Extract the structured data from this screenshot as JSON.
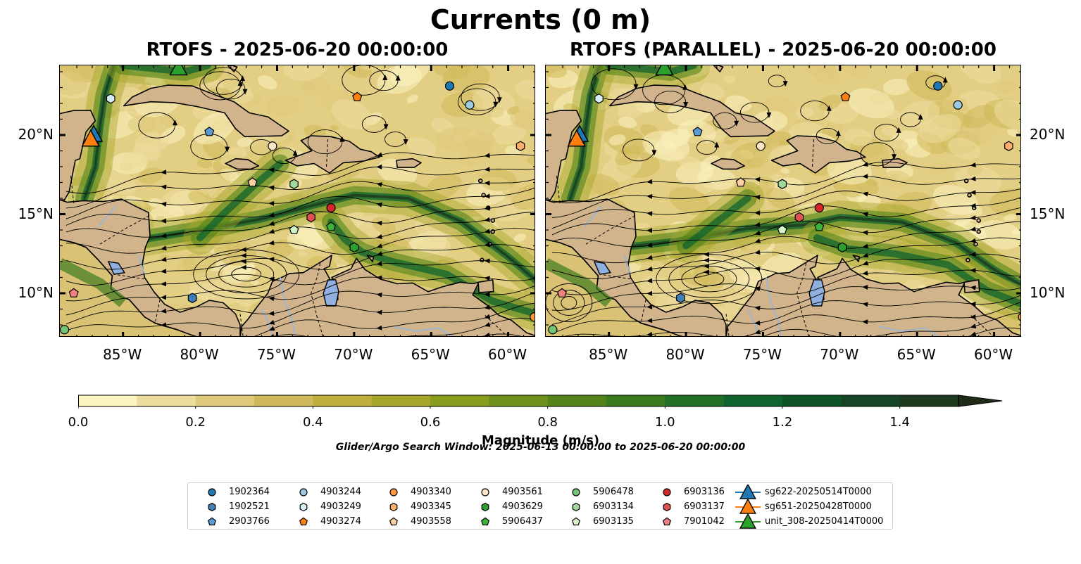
{
  "suptitle": "Currents (0 m)",
  "panels": [
    {
      "title": "RTOFS - 2025-06-20 00:00:00"
    },
    {
      "title": "RTOFS (PARALLEL) - 2025-06-20 00:00:00"
    }
  ],
  "map": {
    "lon_range": [
      -89.1,
      -58.2
    ],
    "lat_range": [
      7.2,
      24.4
    ],
    "lon_ticks": [
      "85°W",
      "80°W",
      "75°W",
      "70°W",
      "65°W",
      "60°W"
    ],
    "lat_ticks": [
      "20°N",
      "15°N",
      "10°N"
    ],
    "colors": {
      "land": "#d2b48c",
      "lake": "#8fb0e0",
      "river": "#9fb5d0"
    }
  },
  "colorbar": {
    "label": "Magnitude (m/s)",
    "ticks": [
      "0.0",
      "0.2",
      "0.4",
      "0.6",
      "0.8",
      "1.0",
      "1.2",
      "1.4"
    ],
    "range": [
      0,
      1.5
    ],
    "extend": "max",
    "colors": [
      "#fbf3c0",
      "#ecdc9e",
      "#dfc97a",
      "#d0b95a",
      "#bfb03e",
      "#a5a62a",
      "#8a9c1c",
      "#6f901a",
      "#548419",
      "#3c7a1f",
      "#217026",
      "#0f632c",
      "#0e5427",
      "#154524",
      "#1d3a1f",
      "#1f2a17"
    ]
  },
  "search_window": "Glider/Argo Search Window: 2025-06-13 00:00:00 to 2025-06-20 00:00:00",
  "legend": [
    {
      "label": "1902364",
      "marker": "circle",
      "color": "#1f77b4"
    },
    {
      "label": "1902521",
      "marker": "hexagon",
      "color": "#3f7fb8"
    },
    {
      "label": "2903766",
      "marker": "pentagon",
      "color": "#5b9bd5"
    },
    {
      "label": "4903244",
      "marker": "circle",
      "color": "#9ecae1"
    },
    {
      "label": "4903249",
      "marker": "hexagon",
      "color": "#d6ecf7"
    },
    {
      "label": "4903274",
      "marker": "pentagon",
      "color": "#ff7f0e"
    },
    {
      "label": "4903340",
      "marker": "circle",
      "color": "#ff9a3c"
    },
    {
      "label": "4903345",
      "marker": "hexagon",
      "color": "#fdae6b"
    },
    {
      "label": "4903558",
      "marker": "pentagon",
      "color": "#fdd0a2"
    },
    {
      "label": "4903561",
      "marker": "circle",
      "color": "#fde5c8"
    },
    {
      "label": "4903629",
      "marker": "hexagon",
      "color": "#2ca02c"
    },
    {
      "label": "5906437",
      "marker": "pentagon",
      "color": "#3bb33b"
    },
    {
      "label": "5906478",
      "marker": "circle",
      "color": "#74c476"
    },
    {
      "label": "6903134",
      "marker": "hexagon",
      "color": "#a1d99b"
    },
    {
      "label": "6903135",
      "marker": "pentagon",
      "color": "#d4f4cc"
    },
    {
      "label": "6903136",
      "marker": "circle",
      "color": "#d62728"
    },
    {
      "label": "6903137",
      "marker": "hexagon",
      "color": "#e05050"
    },
    {
      "label": "7901042",
      "marker": "pentagon",
      "color": "#f08080"
    },
    {
      "label": "sg622-20250514T0000",
      "marker": "triangle",
      "color": "#1f77b4"
    },
    {
      "label": "sg651-20250428T0000",
      "marker": "triangle",
      "color": "#ff7f0e"
    },
    {
      "label": "unit_308-20250414T0000",
      "marker": "triangle",
      "color": "#2ca02c"
    }
  ],
  "floats": [
    {
      "label": "1902364",
      "lon": -63.8,
      "lat": 23.1
    },
    {
      "label": "4903244",
      "lon": -62.5,
      "lat": 21.9
    },
    {
      "label": "4903249",
      "lon": -85.8,
      "lat": 22.3
    },
    {
      "label": "2903766",
      "lon": -79.4,
      "lat": 20.2
    },
    {
      "label": "4903274",
      "lon": -69.8,
      "lat": 22.4
    },
    {
      "label": "4903561",
      "lon": -75.3,
      "lat": 19.3
    },
    {
      "label": "4903345",
      "lon": -59.2,
      "lat": 19.3
    },
    {
      "label": "4903558",
      "lon": -76.6,
      "lat": 17.0
    },
    {
      "label": "6903134",
      "lon": -73.9,
      "lat": 16.9
    },
    {
      "label": "6903137",
      "lon": -72.8,
      "lat": 14.8
    },
    {
      "label": "6903136",
      "lon": -71.5,
      "lat": 15.4
    },
    {
      "label": "6903135",
      "lon": -73.9,
      "lat": 14.0
    },
    {
      "label": "5906437",
      "lon": -71.5,
      "lat": 14.2
    },
    {
      "label": "4903629",
      "lon": -70.0,
      "lat": 12.9
    },
    {
      "label": "1902521",
      "lon": -80.5,
      "lat": 9.7
    },
    {
      "label": "7901042",
      "lon": -88.2,
      "lat": 10.0
    },
    {
      "label": "5906478",
      "lon": -88.8,
      "lat": 7.7
    },
    {
      "label": "4903340",
      "lon": -58.3,
      "lat": 8.5
    }
  ],
  "gliders": [
    {
      "label": "sg622-20250514T0000",
      "lon": -86.9,
      "lat": 20.0
    },
    {
      "label": "sg651-20250428T0000",
      "lon": -87.1,
      "lat": 19.7
    },
    {
      "label": "unit_308-20250414T0000",
      "lon": -81.4,
      "lat": 24.2
    }
  ]
}
